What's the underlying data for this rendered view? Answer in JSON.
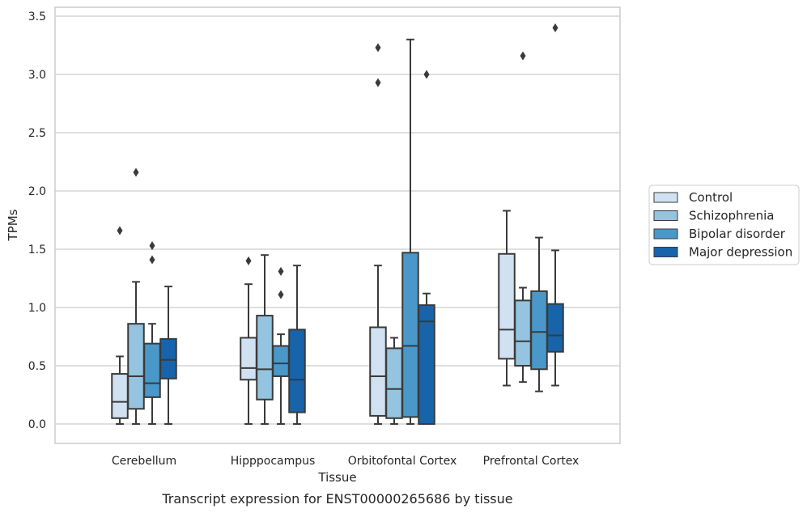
{
  "caption": "Transcript expression for ENST00000265686 by tissue",
  "chart_data": {
    "type": "box",
    "xlabel": "Tissue",
    "ylabel": "TPMs",
    "ylim": [
      -0.17,
      3.58
    ],
    "yticks": [
      "0.0",
      "0.5",
      "1.0",
      "1.5",
      "2.0",
      "2.5",
      "3.0",
      "3.5"
    ],
    "grid": "horizontal",
    "legend_position": "right",
    "categories": [
      "Cerebellum",
      "Hipppocampus",
      "Orbitofontal Cortex",
      "Prefrontal Cortex"
    ],
    "series": [
      {
        "name": "Control",
        "color": "#d0e1f2",
        "boxes": [
          {
            "whislo": 0.0,
            "q1": 0.05,
            "med": 0.19,
            "q3": 0.43,
            "whishi": 0.58,
            "fliers": [
              1.66
            ]
          },
          {
            "whislo": 0.0,
            "q1": 0.38,
            "med": 0.48,
            "q3": 0.74,
            "whishi": 1.2,
            "fliers": [
              1.4
            ]
          },
          {
            "whislo": 0.0,
            "q1": 0.07,
            "med": 0.41,
            "q3": 0.83,
            "whishi": 1.36,
            "fliers": [
              2.93,
              3.23
            ]
          },
          {
            "whislo": 0.33,
            "q1": 0.56,
            "med": 0.81,
            "q3": 1.46,
            "whishi": 1.83,
            "fliers": []
          }
        ]
      },
      {
        "name": "Schizophrenia",
        "color": "#94c4df",
        "boxes": [
          {
            "whislo": 0.0,
            "q1": 0.13,
            "med": 0.41,
            "q3": 0.86,
            "whishi": 1.22,
            "fliers": [
              2.16
            ]
          },
          {
            "whislo": 0.0,
            "q1": 0.21,
            "med": 0.47,
            "q3": 0.93,
            "whishi": 1.45,
            "fliers": []
          },
          {
            "whislo": 0.0,
            "q1": 0.05,
            "med": 0.3,
            "q3": 0.65,
            "whishi": 0.74,
            "fliers": []
          },
          {
            "whislo": 0.36,
            "q1": 0.5,
            "med": 0.71,
            "q3": 1.06,
            "whishi": 1.17,
            "fliers": [
              3.16
            ]
          }
        ]
      },
      {
        "name": "Bipolar disorder",
        "color": "#4a98c9",
        "boxes": [
          {
            "whislo": 0.0,
            "q1": 0.23,
            "med": 0.35,
            "q3": 0.69,
            "whishi": 0.86,
            "fliers": [
              1.41,
              1.53
            ]
          },
          {
            "whislo": 0.0,
            "q1": 0.41,
            "med": 0.52,
            "q3": 0.67,
            "whishi": 0.77,
            "fliers": [
              1.11,
              1.31
            ]
          },
          {
            "whislo": 0.0,
            "q1": 0.06,
            "med": 0.67,
            "q3": 1.47,
            "whishi": 3.3,
            "fliers": []
          },
          {
            "whislo": 0.28,
            "q1": 0.47,
            "med": 0.79,
            "q3": 1.14,
            "whishi": 1.6,
            "fliers": []
          }
        ]
      },
      {
        "name": "Major depression",
        "color": "#1764ab",
        "boxes": [
          {
            "whislo": 0.0,
            "q1": 0.39,
            "med": 0.55,
            "q3": 0.73,
            "whishi": 1.18,
            "fliers": []
          },
          {
            "whislo": 0.0,
            "q1": 0.1,
            "med": 0.38,
            "q3": 0.81,
            "whishi": 1.36,
            "fliers": []
          },
          {
            "whislo": 0.0,
            "q1": 0.0,
            "med": 0.88,
            "q3": 1.02,
            "whishi": 1.12,
            "fliers": [
              3.0
            ]
          },
          {
            "whislo": 0.33,
            "q1": 0.62,
            "med": 0.76,
            "q3": 1.03,
            "whishi": 1.49,
            "fliers": [
              3.4
            ]
          }
        ]
      }
    ]
  }
}
